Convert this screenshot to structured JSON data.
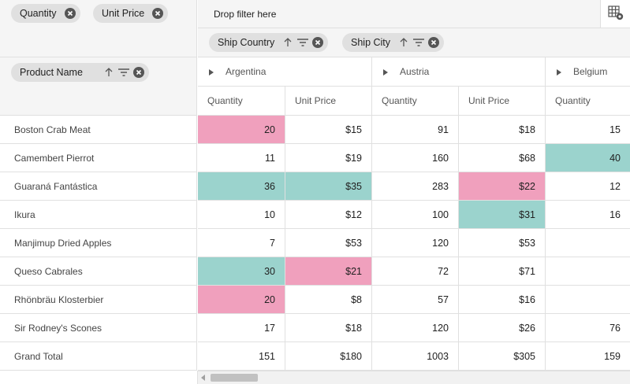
{
  "filter_axis": {
    "chips": [
      {
        "label": "Quantity"
      },
      {
        "label": "Unit Price"
      }
    ]
  },
  "filter_drop": {
    "text": "Drop filter here"
  },
  "column_axis": {
    "chips": [
      {
        "label": "Ship Country"
      },
      {
        "label": "Ship City"
      }
    ]
  },
  "row_axis": {
    "chips": [
      {
        "label": "Product Name"
      }
    ]
  },
  "toolbar": {
    "icon": "grid-settings-icon"
  },
  "columns": {
    "countries": [
      {
        "name": "Argentina"
      },
      {
        "name": "Austria"
      },
      {
        "name": "Belgium"
      }
    ],
    "measures": [
      "Quantity",
      "Unit Price",
      "Quantity",
      "Unit Price",
      "Quantity"
    ]
  },
  "rows": [
    {
      "name": "Boston Crab Meat",
      "cells": [
        {
          "v": "20",
          "c": "pink"
        },
        {
          "v": "$15",
          "c": ""
        },
        {
          "v": "91",
          "c": ""
        },
        {
          "v": "$18",
          "c": ""
        },
        {
          "v": "15",
          "c": ""
        }
      ]
    },
    {
      "name": "Camembert Pierrot",
      "cells": [
        {
          "v": "11",
          "c": ""
        },
        {
          "v": "$19",
          "c": ""
        },
        {
          "v": "160",
          "c": ""
        },
        {
          "v": "$68",
          "c": ""
        },
        {
          "v": "40",
          "c": "teal"
        }
      ]
    },
    {
      "name": "Guaraná Fantástica",
      "cells": [
        {
          "v": "36",
          "c": "teal"
        },
        {
          "v": "$35",
          "c": "teal"
        },
        {
          "v": "283",
          "c": ""
        },
        {
          "v": "$22",
          "c": "pink"
        },
        {
          "v": "12",
          "c": ""
        }
      ]
    },
    {
      "name": "Ikura",
      "cells": [
        {
          "v": "10",
          "c": ""
        },
        {
          "v": "$12",
          "c": ""
        },
        {
          "v": "100",
          "c": ""
        },
        {
          "v": "$31",
          "c": "teal"
        },
        {
          "v": "16",
          "c": ""
        }
      ]
    },
    {
      "name": "Manjimup Dried Apples",
      "cells": [
        {
          "v": "7",
          "c": ""
        },
        {
          "v": "$53",
          "c": ""
        },
        {
          "v": "120",
          "c": ""
        },
        {
          "v": "$53",
          "c": ""
        },
        {
          "v": "",
          "c": ""
        }
      ]
    },
    {
      "name": "Queso Cabrales",
      "cells": [
        {
          "v": "30",
          "c": "teal"
        },
        {
          "v": "$21",
          "c": "pink"
        },
        {
          "v": "72",
          "c": ""
        },
        {
          "v": "$71",
          "c": ""
        },
        {
          "v": "",
          "c": ""
        }
      ]
    },
    {
      "name": "Rhönbräu Klosterbier",
      "cells": [
        {
          "v": "20",
          "c": "pink"
        },
        {
          "v": "$8",
          "c": ""
        },
        {
          "v": "57",
          "c": ""
        },
        {
          "v": "$16",
          "c": ""
        },
        {
          "v": "",
          "c": ""
        }
      ]
    },
    {
      "name": "Sir Rodney's Scones",
      "cells": [
        {
          "v": "17",
          "c": ""
        },
        {
          "v": "$18",
          "c": ""
        },
        {
          "v": "120",
          "c": ""
        },
        {
          "v": "$26",
          "c": ""
        },
        {
          "v": "76",
          "c": ""
        }
      ]
    },
    {
      "name": "Grand Total",
      "cells": [
        {
          "v": "151",
          "c": ""
        },
        {
          "v": "$180",
          "c": ""
        },
        {
          "v": "1003",
          "c": ""
        },
        {
          "v": "$305",
          "c": ""
        },
        {
          "v": "159",
          "c": ""
        }
      ]
    }
  ],
  "colors": {
    "pink": "#f0a0bd",
    "teal": "#9bd3cd",
    "chip": "#e0e0e0",
    "header_bg": "#f5f5f5"
  }
}
